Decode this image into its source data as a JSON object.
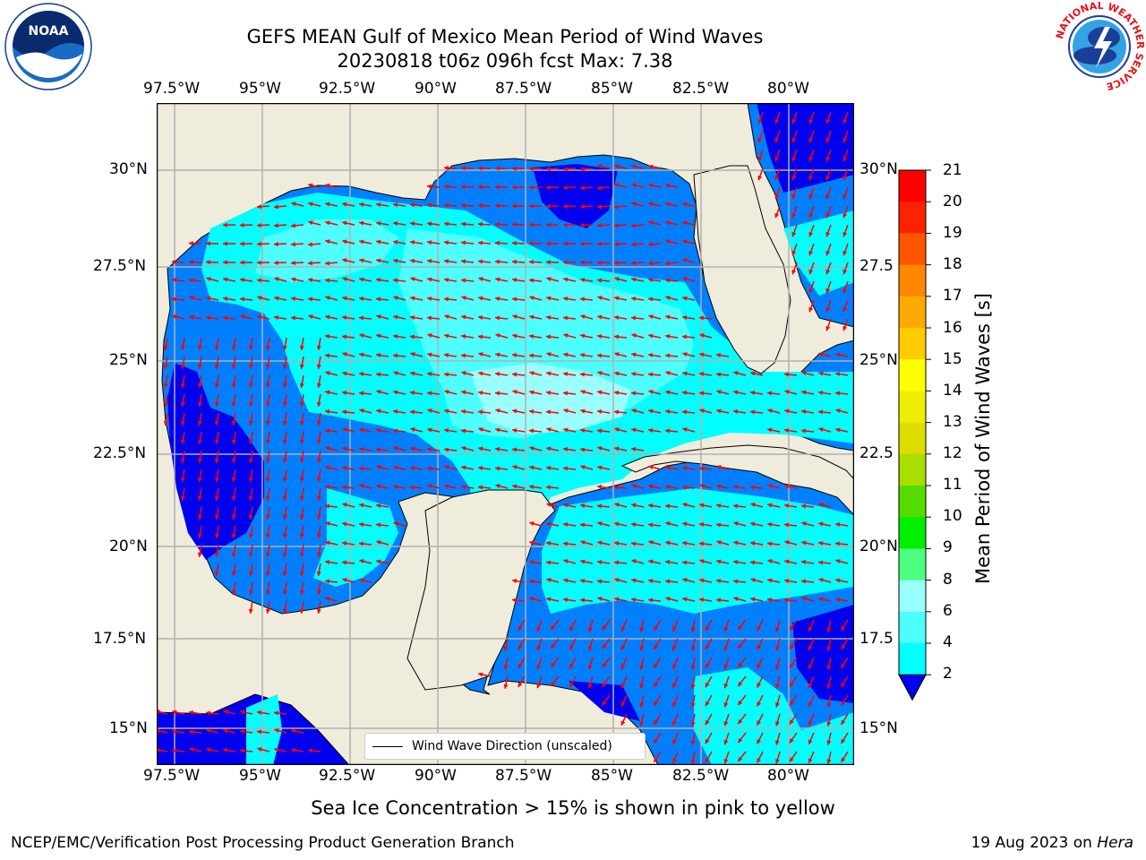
{
  "title": {
    "line1": "GEFS MEAN Gulf of Mexico Mean Period of Wind Waves",
    "line2": "20230818 t06z 096h fcst   Max: 7.38"
  },
  "map": {
    "lon_labels": [
      "97.5°W",
      "95°W",
      "92.5°W",
      "90°W",
      "87.5°W",
      "85°W",
      "82.5°W",
      "80°W"
    ],
    "lat_labels": [
      "30°N",
      "27.5°N",
      "25°N",
      "22.5°N",
      "20°N",
      "17.5°N",
      "15°N"
    ],
    "lat_labels_right": [
      "30°N",
      "27.5",
      "25°N",
      "22.5",
      "20°N",
      "17.5",
      "15°N"
    ],
    "lon_range": [
      -98,
      -78.5
    ],
    "lat_range": [
      14,
      31.5
    ],
    "land_color": "#efecdc",
    "grid_color": "#b0b0b0",
    "arrow_color": "#ff0000",
    "legend_label": "Wind Wave Direction (unscaled)"
  },
  "colorbar": {
    "title": "Mean Period of Wind Waves [s]",
    "labels": [
      "21",
      "20",
      "19",
      "18",
      "17",
      "16",
      "15",
      "14",
      "13",
      "12",
      "11",
      "10",
      "9",
      "8",
      "6",
      "4",
      "2"
    ],
    "colors": [
      "#0000ee",
      "#0080ff",
      "#00ffff",
      "#4dffff",
      "#99ffff",
      "#4dff80",
      "#00ee00",
      "#55dd00",
      "#aadd00",
      "#dddd00",
      "#eeee00",
      "#ffff00",
      "#ffcc00",
      "#ffaa00",
      "#ff8800",
      "#ff5500",
      "#ff2200",
      "#ff0000"
    ],
    "field_colors": {
      "level_0_2": "#0000ee",
      "level_2_4": "#0080ff",
      "level_4_6": "#00ffff",
      "level_6_8": "#4dffff",
      "level_8_9": "#99ffff"
    }
  },
  "notes": {
    "sea_ice": "Sea Ice Concentration > 15% is shown in pink to yellow",
    "credit_left": "NCEP/EMC/Verification Post Processing Product Generation Branch",
    "credit_date": "19 Aug 2023 on ",
    "credit_host": "Hera"
  },
  "logos": {
    "noaa": "NOAA",
    "nws": "NATIONAL WEATHER SERVICE"
  }
}
